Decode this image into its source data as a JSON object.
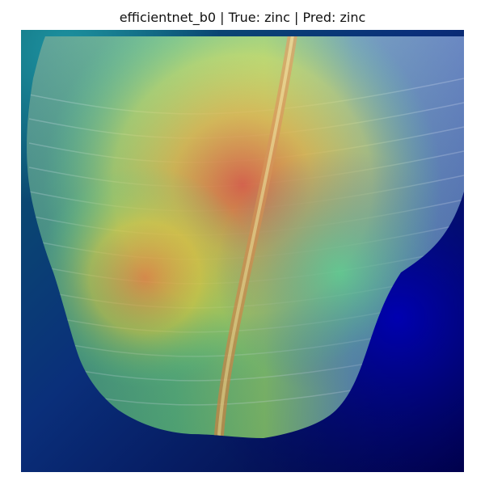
{
  "figure": {
    "title": "efficientnet_b0 | True: zinc | Pred: zinc"
  },
  "image": {
    "subject": "leaf-with-heatmap-overlay",
    "colors": {
      "background_dark": "#00005a",
      "background_teal": "#0d5c6a",
      "leaf_base": "#3f8f7a",
      "heat_red": "#d9573a",
      "heat_yellow": "#d8d83a",
      "heat_green": "#4fcf8a",
      "heat_blue": "#5b74b8"
    }
  }
}
